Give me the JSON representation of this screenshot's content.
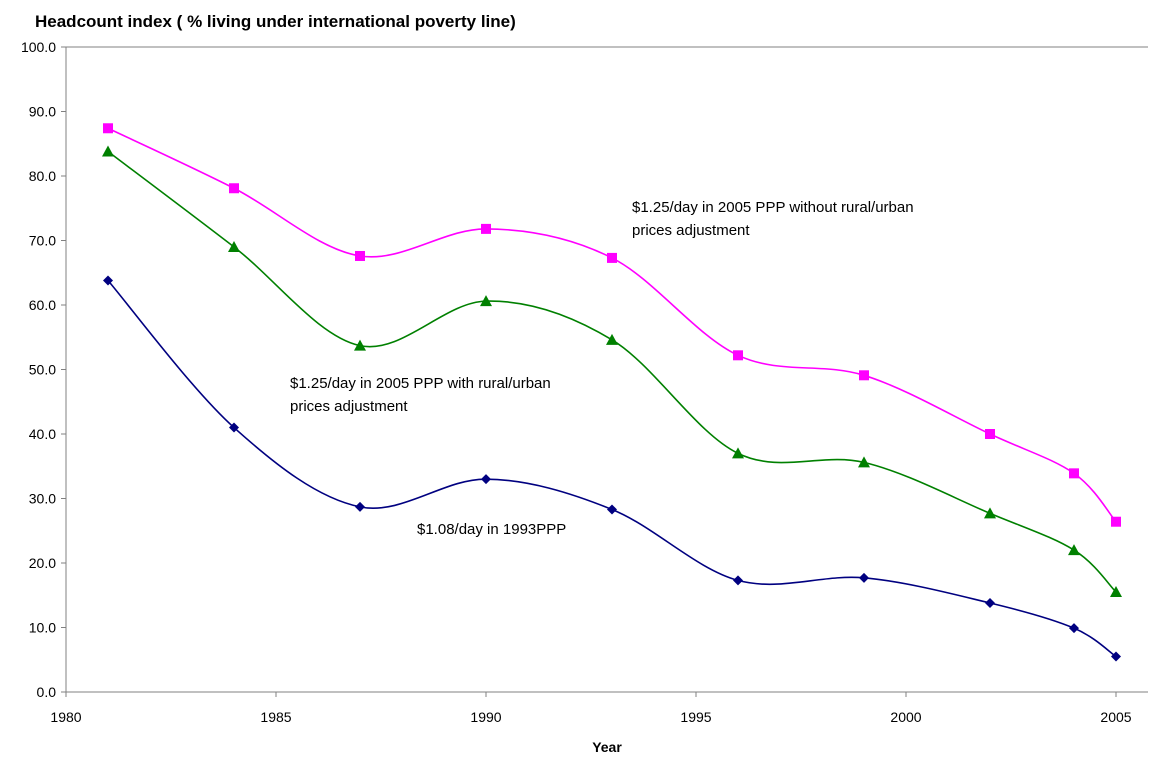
{
  "chart_data": {
    "type": "line",
    "title": "Headcount index ( % living under international poverty line)",
    "xlabel": "Year",
    "ylabel": "",
    "xlim": [
      1980,
      2005
    ],
    "ylim": [
      0,
      100
    ],
    "x_ticks": [
      "1980",
      "1985",
      "1990",
      "1995",
      "2000",
      "2005"
    ],
    "y_ticks": [
      "0.0",
      "10.0",
      "20.0",
      "30.0",
      "40.0",
      "50.0",
      "60.0",
      "70.0",
      "80.0",
      "90.0",
      "100.0"
    ],
    "grid": false,
    "legend": "none",
    "x": [
      1981,
      1984,
      1987,
      1990,
      1993,
      1996,
      1999,
      2002,
      2004,
      2005
    ],
    "series": [
      {
        "name": "$1.25/day in 2005 PPP without rural/urban prices adjustment",
        "color": "#ff00ff",
        "marker": "square",
        "values": [
          87.4,
          78.1,
          67.6,
          71.8,
          67.3,
          52.2,
          49.1,
          40.0,
          33.9,
          26.4
        ]
      },
      {
        "name": "$1.25/day in 2005 PPP with rural/urban prices adjustment",
        "color": "#008000",
        "marker": "triangle",
        "values": [
          83.8,
          69.0,
          53.7,
          60.6,
          54.6,
          37.0,
          35.6,
          27.7,
          22.0,
          15.5
        ]
      },
      {
        "name": "$1.08/day in 1993PPP",
        "color": "#000080",
        "marker": "diamond",
        "values": [
          63.8,
          41.0,
          28.7,
          33.0,
          28.3,
          17.3,
          17.7,
          13.8,
          9.9,
          5.5
        ]
      }
    ],
    "annotations": [
      {
        "lines": [
          "$1.25/day in 2005 PPP without rural/urban",
          "prices adjustment"
        ],
        "series": 0
      },
      {
        "lines": [
          "$1.25/day in 2005 PPP with rural/urban",
          "prices adjustment"
        ],
        "series": 1
      },
      {
        "lines": [
          "$1.08/day in 1993PPP"
        ],
        "series": 2
      }
    ]
  }
}
